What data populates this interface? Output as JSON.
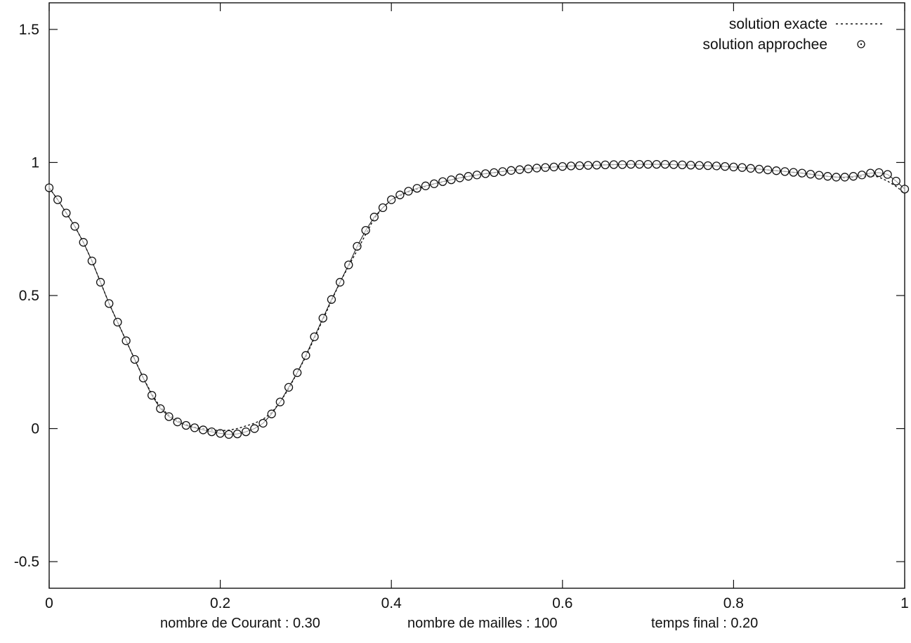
{
  "chart_data": {
    "type": "scatter",
    "title": "",
    "xlabel": "",
    "ylabel": "",
    "xlim": [
      0,
      1
    ],
    "ylim": [
      -0.6,
      1.6
    ],
    "x_ticks": [
      "0",
      "0.2",
      "0.4",
      "0.6",
      "0.8",
      "1"
    ],
    "y_ticks": [
      "-0.5",
      "0",
      "0.5",
      "1",
      "1.5"
    ],
    "grid": false,
    "legend_position": "top-right",
    "series": [
      {
        "name": "solution exacte",
        "style": "dotted line",
        "x": [
          0.0,
          0.01,
          0.02,
          0.03,
          0.04,
          0.05,
          0.06,
          0.07,
          0.08,
          0.09,
          0.1,
          0.11,
          0.12,
          0.13,
          0.14,
          0.15,
          0.16,
          0.17,
          0.18,
          0.19,
          0.2,
          0.21,
          0.22,
          0.23,
          0.24,
          0.25,
          0.26,
          0.27,
          0.28,
          0.29,
          0.3,
          0.31,
          0.32,
          0.33,
          0.34,
          0.35,
          0.36,
          0.37,
          0.38,
          0.39,
          0.4,
          0.41,
          0.42,
          0.43,
          0.44,
          0.45,
          0.46,
          0.47,
          0.48,
          0.49,
          0.5,
          0.51,
          0.52,
          0.53,
          0.54,
          0.55,
          0.56,
          0.57,
          0.58,
          0.59,
          0.6,
          0.61,
          0.62,
          0.63,
          0.64,
          0.65,
          0.66,
          0.67,
          0.68,
          0.69,
          0.7,
          0.71,
          0.72,
          0.73,
          0.74,
          0.75,
          0.76,
          0.77,
          0.78,
          0.79,
          0.8,
          0.81,
          0.82,
          0.83,
          0.84,
          0.85,
          0.86,
          0.87,
          0.88,
          0.89,
          0.9,
          0.91,
          0.92,
          0.93,
          0.94,
          0.95,
          0.96,
          0.97,
          0.98,
          0.99,
          1.0
        ],
        "y": [
          0.905,
          0.86,
          0.81,
          0.76,
          0.7,
          0.63,
          0.55,
          0.47,
          0.4,
          0.33,
          0.26,
          0.19,
          0.13,
          0.08,
          0.05,
          0.03,
          0.015,
          0.005,
          0.0,
          -0.005,
          -0.008,
          -0.006,
          0.0,
          0.01,
          0.02,
          0.035,
          0.06,
          0.1,
          0.15,
          0.21,
          0.27,
          0.34,
          0.41,
          0.48,
          0.55,
          0.61,
          0.67,
          0.73,
          0.79,
          0.83,
          0.86,
          0.875,
          0.89,
          0.9,
          0.91,
          0.92,
          0.927,
          0.935,
          0.942,
          0.948,
          0.953,
          0.958,
          0.962,
          0.966,
          0.97,
          0.973,
          0.976,
          0.979,
          0.981,
          0.983,
          0.985,
          0.987,
          0.988,
          0.989,
          0.99,
          0.991,
          0.992,
          0.992,
          0.993,
          0.993,
          0.993,
          0.993,
          0.993,
          0.992,
          0.991,
          0.99,
          0.989,
          0.988,
          0.987,
          0.985,
          0.983,
          0.981,
          0.978,
          0.975,
          0.972,
          0.969,
          0.966,
          0.963,
          0.96,
          0.956,
          0.952,
          0.948,
          0.945,
          0.942,
          0.944,
          0.948,
          0.952,
          0.945,
          0.93,
          0.91,
          0.885
        ]
      },
      {
        "name": "solution approchee",
        "style": "circle markers",
        "x": [
          0.0,
          0.01,
          0.02,
          0.03,
          0.04,
          0.05,
          0.06,
          0.07,
          0.08,
          0.09,
          0.1,
          0.11,
          0.12,
          0.13,
          0.14,
          0.15,
          0.16,
          0.17,
          0.18,
          0.19,
          0.2,
          0.21,
          0.22,
          0.23,
          0.24,
          0.25,
          0.26,
          0.27,
          0.28,
          0.29,
          0.3,
          0.31,
          0.32,
          0.33,
          0.34,
          0.35,
          0.36,
          0.37,
          0.38,
          0.39,
          0.4,
          0.41,
          0.42,
          0.43,
          0.44,
          0.45,
          0.46,
          0.47,
          0.48,
          0.49,
          0.5,
          0.51,
          0.52,
          0.53,
          0.54,
          0.55,
          0.56,
          0.57,
          0.58,
          0.59,
          0.6,
          0.61,
          0.62,
          0.63,
          0.64,
          0.65,
          0.66,
          0.67,
          0.68,
          0.69,
          0.7,
          0.71,
          0.72,
          0.73,
          0.74,
          0.75,
          0.76,
          0.77,
          0.78,
          0.79,
          0.8,
          0.81,
          0.82,
          0.83,
          0.84,
          0.85,
          0.86,
          0.87,
          0.88,
          0.89,
          0.9,
          0.91,
          0.92,
          0.93,
          0.94,
          0.95,
          0.96,
          0.97,
          0.98,
          0.99,
          1.0
        ],
        "y": [
          0.905,
          0.86,
          0.81,
          0.76,
          0.7,
          0.63,
          0.55,
          0.47,
          0.4,
          0.33,
          0.26,
          0.19,
          0.125,
          0.075,
          0.045,
          0.025,
          0.012,
          0.003,
          -0.005,
          -0.012,
          -0.018,
          -0.022,
          -0.02,
          -0.012,
          0.0,
          0.02,
          0.055,
          0.1,
          0.155,
          0.21,
          0.275,
          0.345,
          0.415,
          0.485,
          0.55,
          0.615,
          0.685,
          0.745,
          0.795,
          0.83,
          0.86,
          0.878,
          0.892,
          0.903,
          0.912,
          0.92,
          0.928,
          0.935,
          0.942,
          0.948,
          0.953,
          0.958,
          0.962,
          0.966,
          0.97,
          0.973,
          0.976,
          0.979,
          0.981,
          0.983,
          0.985,
          0.987,
          0.988,
          0.989,
          0.99,
          0.991,
          0.992,
          0.992,
          0.993,
          0.993,
          0.993,
          0.993,
          0.993,
          0.992,
          0.991,
          0.99,
          0.989,
          0.988,
          0.987,
          0.985,
          0.983,
          0.981,
          0.978,
          0.975,
          0.972,
          0.969,
          0.966,
          0.963,
          0.96,
          0.956,
          0.952,
          0.948,
          0.945,
          0.945,
          0.948,
          0.953,
          0.96,
          0.962,
          0.955,
          0.93,
          0.9
        ]
      }
    ]
  },
  "captions": {
    "courant": "nombre de Courant :  0.30",
    "mailles": "nombre de mailles : 100",
    "temps": "temps final  :  0.20"
  }
}
